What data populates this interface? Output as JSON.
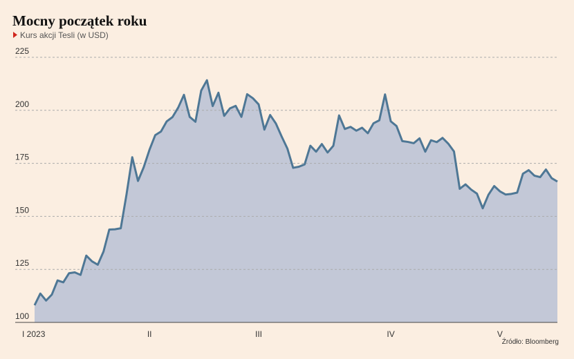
{
  "chart_data": {
    "type": "area",
    "title": "Mocny początek roku",
    "subtitle": "Kurs akcji Tesli (w USD)",
    "source": "Źródło: Bloomberg",
    "categories": [
      "I 2023",
      null,
      null,
      null,
      null,
      null,
      null,
      null,
      null,
      null,
      null,
      null,
      null,
      null,
      null,
      null,
      null,
      null,
      null,
      null,
      "II",
      null,
      null,
      null,
      null,
      null,
      null,
      null,
      null,
      null,
      null,
      null,
      null,
      null,
      null,
      null,
      null,
      null,
      null,
      "III",
      null,
      null,
      null,
      null,
      null,
      null,
      null,
      null,
      null,
      null,
      null,
      null,
      null,
      null,
      null,
      null,
      null,
      null,
      null,
      null,
      null,
      null,
      "IV",
      null,
      null,
      null,
      null,
      null,
      null,
      null,
      null,
      null,
      null,
      null,
      null,
      null,
      null,
      null,
      null,
      null,
      null,
      "V",
      null,
      null,
      null,
      null,
      null,
      null,
      null,
      null,
      null,
      null
    ],
    "values": [
      108.1,
      113.6,
      110.3,
      113.1,
      119.8,
      118.9,
      123.2,
      123.6,
      122.4,
      131.5,
      128.8,
      127.2,
      133.4,
      143.8,
      143.9,
      144.4,
      160.3,
      177.9,
      166.7,
      173.2,
      181.4,
      188.3,
      190.0,
      194.8,
      196.8,
      201.3,
      207.3,
      196.9,
      194.6,
      209.3,
      214.2,
      202.0,
      208.3,
      197.4,
      200.9,
      202.1,
      196.9,
      207.6,
      205.7,
      202.8,
      190.9,
      197.8,
      193.8,
      187.7,
      182.0,
      172.9,
      173.4,
      174.5,
      183.3,
      180.5,
      184.1,
      180.1,
      183.3,
      197.6,
      191.2,
      192.2,
      190.4,
      191.8,
      189.2,
      193.9,
      195.3,
      207.5,
      194.8,
      192.6,
      185.5,
      185.1,
      184.5,
      186.8,
      180.5,
      185.9,
      185.0,
      187.0,
      184.3,
      180.6,
      163.0,
      165.1,
      162.6,
      160.7,
      153.8,
      160.2,
      164.3,
      161.8,
      160.3,
      160.6,
      161.2,
      170.1,
      171.8,
      169.2,
      168.5,
      172.1,
      168.0,
      166.4
    ],
    "ylim": [
      100,
      225
    ],
    "yticks": [
      100,
      125,
      150,
      175,
      200,
      225
    ],
    "grid": true,
    "color": "#4e7795",
    "fill_color": "#c3c8d7"
  }
}
